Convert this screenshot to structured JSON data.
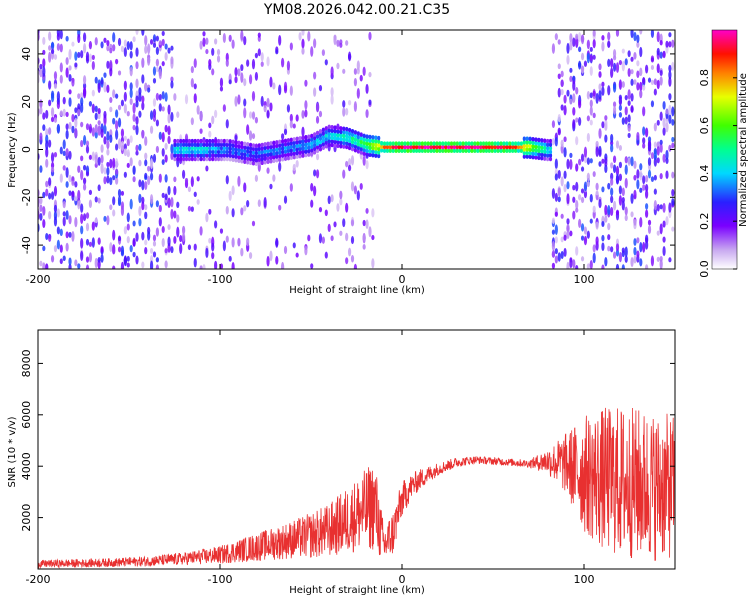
{
  "title": "YM08.2026.042.00.21.C35",
  "chart_data": [
    {
      "type": "heatmap",
      "xlabel": "Height of straight line (km)",
      "ylabel": "Frequency (Hz)",
      "xlim": [
        -200,
        150
      ],
      "ylim": [
        -50,
        50
      ],
      "xticks": [
        -200,
        -100,
        0,
        100
      ],
      "yticks": [
        -40,
        -20,
        0,
        20,
        40
      ],
      "colorbar": {
        "label": "Normalized spectral amplitude",
        "range": [
          0,
          1
        ],
        "ticks": [
          0.0,
          0.2,
          0.4,
          0.6,
          0.8
        ]
      },
      "ridge": [
        {
          "x": -125,
          "y": 0,
          "amp": 0.45
        },
        {
          "x": -110,
          "y": 0,
          "amp": 0.45
        },
        {
          "x": -95,
          "y": 0,
          "amp": 0.35
        },
        {
          "x": -80,
          "y": -2,
          "amp": 0.35
        },
        {
          "x": -65,
          "y": 0,
          "amp": 0.35
        },
        {
          "x": -50,
          "y": 2,
          "amp": 0.4
        },
        {
          "x": -40,
          "y": 6,
          "amp": 0.45
        },
        {
          "x": -30,
          "y": 5,
          "amp": 0.5
        },
        {
          "x": -20,
          "y": 2,
          "amp": 0.6
        },
        {
          "x": -10,
          "y": 1,
          "amp": 0.85
        },
        {
          "x": 0,
          "y": 1,
          "amp": 0.95
        },
        {
          "x": 20,
          "y": 1,
          "amp": 0.95
        },
        {
          "x": 40,
          "y": 1,
          "amp": 0.95
        },
        {
          "x": 60,
          "y": 1,
          "amp": 0.9
        },
        {
          "x": 70,
          "y": 1,
          "amp": 0.75
        },
        {
          "x": 80,
          "y": 0,
          "amp": 0.45
        }
      ]
    },
    {
      "type": "line",
      "xlabel": "Height of straight line (km)",
      "ylabel": "SNR (10 * v/v)",
      "xlim": [
        -200,
        150
      ],
      "ylim": [
        0,
        9300
      ],
      "xticks": [
        -200,
        -100,
        0,
        100
      ],
      "yticks": [
        2000,
        4000,
        6000,
        8000
      ],
      "series": [
        {
          "name": "SNR",
          "color": "#e83030",
          "x": [
            -200,
            -180,
            -160,
            -140,
            -120,
            -100,
            -90,
            -80,
            -70,
            -60,
            -50,
            -40,
            -30,
            -20,
            -15,
            -10,
            -5,
            0,
            5,
            10,
            20,
            30,
            40,
            50,
            60,
            70,
            80,
            90,
            100,
            110,
            120,
            130,
            140,
            150
          ],
          "y": [
            200,
            220,
            250,
            300,
            400,
            550,
            700,
            850,
            1000,
            1150,
            1300,
            1500,
            1900,
            2300,
            2500,
            900,
            1400,
            2700,
            3200,
            3500,
            3900,
            4150,
            4250,
            4200,
            4150,
            4100,
            4200,
            4100,
            3700,
            3500,
            3400,
            3300,
            3200,
            3200
          ],
          "spread": [
            150,
            160,
            170,
            200,
            250,
            350,
            450,
            550,
            650,
            750,
            900,
            1050,
            1300,
            1600,
            1800,
            800,
            900,
            700,
            500,
            400,
            250,
            200,
            150,
            150,
            150,
            150,
            500,
            1200,
            2300,
            2800,
            3000,
            3000,
            2900,
            2800
          ]
        }
      ]
    }
  ]
}
